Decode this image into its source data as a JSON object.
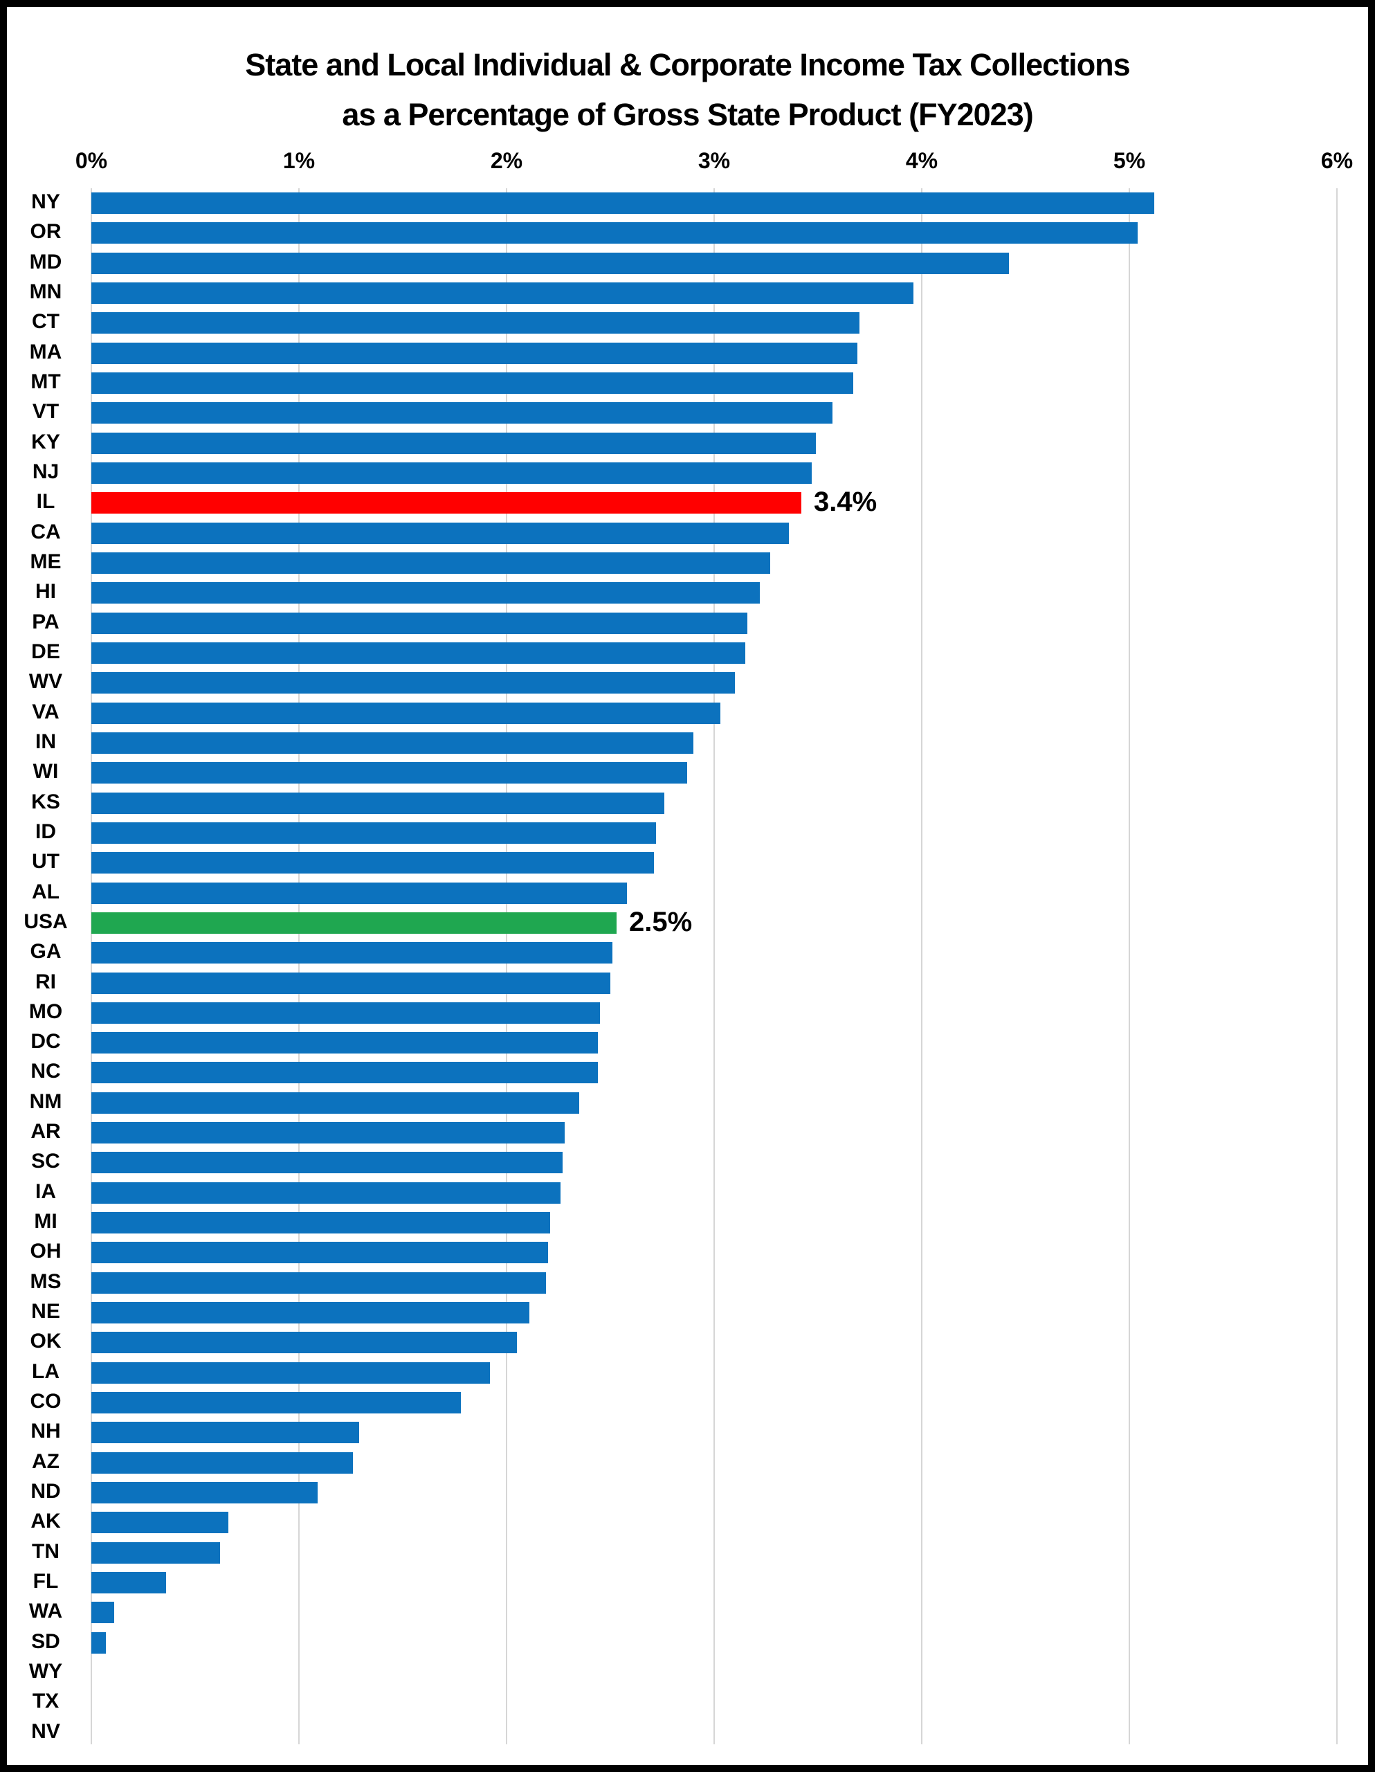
{
  "title": {
    "line1": "State and Local Individual & Corporate Income Tax Collections",
    "line2": "as a Percentage of Gross State Product (FY2023)"
  },
  "colors": {
    "blue": "#0C72BE",
    "red": "#FF0000",
    "green": "#1FA750",
    "gridline": "#D6D6D6",
    "text": "#000000",
    "frame": "#000000",
    "background": "#FFFFFF"
  },
  "chart_data": {
    "type": "bar",
    "orientation": "horizontal",
    "title": "State and Local Individual & Corporate Income Tax Collections as a Percentage of Gross State Product (FY2023)",
    "xlabel": "",
    "ylabel": "",
    "xlim": [
      0,
      6
    ],
    "grid": "vertical",
    "axis": {
      "ticks": [
        "0%",
        "1%",
        "2%",
        "3%",
        "4%",
        "5%",
        "6%"
      ],
      "tick_values": [
        0,
        1,
        2,
        3,
        4,
        5,
        6
      ],
      "position": "top"
    },
    "rows": [
      {
        "label": "NY",
        "value": 5.12,
        "color": "blue",
        "annotation": null
      },
      {
        "label": "OR",
        "value": 5.04,
        "color": "blue",
        "annotation": null
      },
      {
        "label": "MD",
        "value": 4.42,
        "color": "blue",
        "annotation": null
      },
      {
        "label": "MN",
        "value": 3.96,
        "color": "blue",
        "annotation": null
      },
      {
        "label": "CT",
        "value": 3.7,
        "color": "blue",
        "annotation": null
      },
      {
        "label": "MA",
        "value": 3.69,
        "color": "blue",
        "annotation": null
      },
      {
        "label": "MT",
        "value": 3.67,
        "color": "blue",
        "annotation": null
      },
      {
        "label": "VT",
        "value": 3.57,
        "color": "blue",
        "annotation": null
      },
      {
        "label": "KY",
        "value": 3.49,
        "color": "blue",
        "annotation": null
      },
      {
        "label": "NJ",
        "value": 3.47,
        "color": "blue",
        "annotation": null
      },
      {
        "label": "IL",
        "value": 3.42,
        "color": "red",
        "annotation": "3.4%"
      },
      {
        "label": "CA",
        "value": 3.36,
        "color": "blue",
        "annotation": null
      },
      {
        "label": "ME",
        "value": 3.27,
        "color": "blue",
        "annotation": null
      },
      {
        "label": "HI",
        "value": 3.22,
        "color": "blue",
        "annotation": null
      },
      {
        "label": "PA",
        "value": 3.16,
        "color": "blue",
        "annotation": null
      },
      {
        "label": "DE",
        "value": 3.15,
        "color": "blue",
        "annotation": null
      },
      {
        "label": "WV",
        "value": 3.1,
        "color": "blue",
        "annotation": null
      },
      {
        "label": "VA",
        "value": 3.03,
        "color": "blue",
        "annotation": null
      },
      {
        "label": "IN",
        "value": 2.9,
        "color": "blue",
        "annotation": null
      },
      {
        "label": "WI",
        "value": 2.87,
        "color": "blue",
        "annotation": null
      },
      {
        "label": "KS",
        "value": 2.76,
        "color": "blue",
        "annotation": null
      },
      {
        "label": "ID",
        "value": 2.72,
        "color": "blue",
        "annotation": null
      },
      {
        "label": "UT",
        "value": 2.71,
        "color": "blue",
        "annotation": null
      },
      {
        "label": "AL",
        "value": 2.58,
        "color": "blue",
        "annotation": null
      },
      {
        "label": "USA",
        "value": 2.53,
        "color": "green",
        "annotation": "2.5%"
      },
      {
        "label": "GA",
        "value": 2.51,
        "color": "blue",
        "annotation": null
      },
      {
        "label": "RI",
        "value": 2.5,
        "color": "blue",
        "annotation": null
      },
      {
        "label": "MO",
        "value": 2.45,
        "color": "blue",
        "annotation": null
      },
      {
        "label": "DC",
        "value": 2.44,
        "color": "blue",
        "annotation": null
      },
      {
        "label": "NC",
        "value": 2.44,
        "color": "blue",
        "annotation": null
      },
      {
        "label": "NM",
        "value": 2.35,
        "color": "blue",
        "annotation": null
      },
      {
        "label": "AR",
        "value": 2.28,
        "color": "blue",
        "annotation": null
      },
      {
        "label": "SC",
        "value": 2.27,
        "color": "blue",
        "annotation": null
      },
      {
        "label": "IA",
        "value": 2.26,
        "color": "blue",
        "annotation": null
      },
      {
        "label": "MI",
        "value": 2.21,
        "color": "blue",
        "annotation": null
      },
      {
        "label": "OH",
        "value": 2.2,
        "color": "blue",
        "annotation": null
      },
      {
        "label": "MS",
        "value": 2.19,
        "color": "blue",
        "annotation": null
      },
      {
        "label": "NE",
        "value": 2.11,
        "color": "blue",
        "annotation": null
      },
      {
        "label": "OK",
        "value": 2.05,
        "color": "blue",
        "annotation": null
      },
      {
        "label": "LA",
        "value": 1.92,
        "color": "blue",
        "annotation": null
      },
      {
        "label": "CO",
        "value": 1.78,
        "color": "blue",
        "annotation": null
      },
      {
        "label": "NH",
        "value": 1.29,
        "color": "blue",
        "annotation": null
      },
      {
        "label": "AZ",
        "value": 1.26,
        "color": "blue",
        "annotation": null
      },
      {
        "label": "ND",
        "value": 1.09,
        "color": "blue",
        "annotation": null
      },
      {
        "label": "AK",
        "value": 0.66,
        "color": "blue",
        "annotation": null
      },
      {
        "label": "TN",
        "value": 0.62,
        "color": "blue",
        "annotation": null
      },
      {
        "label": "FL",
        "value": 0.36,
        "color": "blue",
        "annotation": null
      },
      {
        "label": "WA",
        "value": 0.11,
        "color": "blue",
        "annotation": null
      },
      {
        "label": "SD",
        "value": 0.07,
        "color": "blue",
        "annotation": null
      },
      {
        "label": "WY",
        "value": 0.0,
        "color": "blue",
        "annotation": null
      },
      {
        "label": "TX",
        "value": 0.0,
        "color": "blue",
        "annotation": null
      },
      {
        "label": "NV",
        "value": 0.0,
        "color": "blue",
        "annotation": null
      }
    ]
  }
}
